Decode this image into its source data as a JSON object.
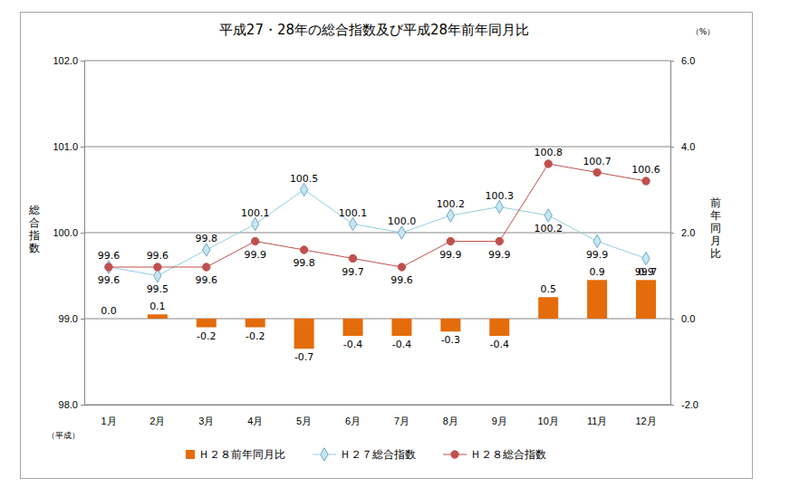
{
  "chart_data": {
    "type": "bar",
    "title": "平成27・28年の総合指数及び平成28年前年同月比",
    "y_label": "総合指数",
    "y2_label": "前年同月比",
    "annotations": [
      "（%）",
      "（平成）"
    ],
    "categories": [
      "1月",
      "2月",
      "3月",
      "4月",
      "5月",
      "6月",
      "7月",
      "8月",
      "9月",
      "10月",
      "11月",
      "12月"
    ],
    "ylim": [
      98,
      102
    ],
    "yticks": [
      {
        "value": 98,
        "label": "98.0"
      },
      {
        "value": 99,
        "label": "99.0"
      },
      {
        "value": 100,
        "label": "100.0"
      },
      {
        "value": 101,
        "label": "101.0"
      },
      {
        "value": 102,
        "label": "102.0"
      }
    ],
    "y2lim": [
      -2,
      6
    ],
    "y2ticks": [
      {
        "value": -2,
        "label": "-2.0"
      },
      {
        "value": 0,
        "label": "0.0"
      },
      {
        "value": 2,
        "label": "2.0"
      },
      {
        "value": 4,
        "label": "4.0"
      },
      {
        "value": 6,
        "label": "6.0"
      }
    ],
    "grid": true,
    "legend": "bottom",
    "data_labels": true,
    "series": [
      {
        "name": "Ｈ２８前年同月比",
        "type": "bar",
        "axis": "y2",
        "color": "#E46C0A",
        "values": [
          0,
          0.1,
          -0.2,
          -0.2,
          -0.7,
          -0.4,
          -0.4,
          -0.3,
          -0.4,
          0.5,
          0.9,
          0.9
        ],
        "value_labels": [
          "0.0",
          "0.1",
          "-0.2",
          "-0.2",
          "-0.7",
          "-0.4",
          "-0.4",
          "-0.3",
          "-0.4",
          "0.5",
          "0.9",
          "0.9"
        ]
      },
      {
        "name": "Ｈ２７総合指数",
        "type": "line",
        "color": "#93CDDD",
        "marker": "diamond",
        "values": [
          99.6,
          99.5,
          99.8,
          100.1,
          100.5,
          100.1,
          100,
          100.2,
          100.3,
          100.2,
          99.9,
          99.7
        ],
        "value_labels": [
          "99.6",
          "99.5",
          "99.8",
          "100.1",
          "100.5",
          "100.1",
          "100.0",
          "100.2",
          "100.3",
          "100.2",
          "99.9",
          "99.7"
        ]
      },
      {
        "name": "Ｈ２８総合指数",
        "type": "line",
        "color": "#C0504D",
        "marker": "circle",
        "values": [
          99.6,
          99.6,
          99.6,
          99.9,
          99.8,
          99.7,
          99.6,
          99.9,
          99.9,
          100.8,
          100.7,
          100.6
        ],
        "value_labels": [
          "99.6",
          "99.6",
          "99.6",
          "99.9",
          "99.8",
          "99.7",
          "99.6",
          "99.9",
          "99.9",
          "100.8",
          "100.7",
          "100.6"
        ]
      }
    ]
  }
}
